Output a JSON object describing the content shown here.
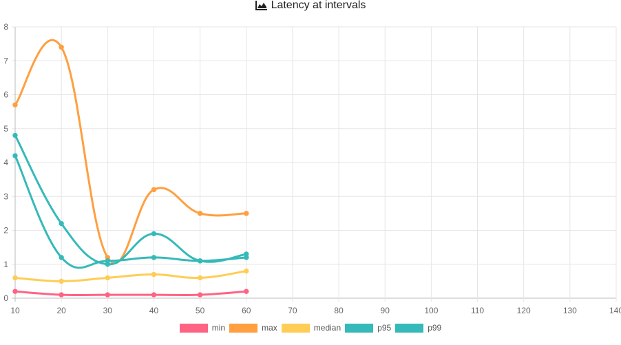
{
  "title": "Latency at intervals",
  "chart_data": {
    "type": "line",
    "title": "Latency at intervals",
    "xlabel": "",
    "ylabel": "",
    "x": [
      10,
      20,
      30,
      40,
      50,
      60
    ],
    "xlim": [
      10,
      140
    ],
    "xticks": [
      "10",
      "20",
      "30",
      "40",
      "50",
      "60",
      "70",
      "80",
      "90",
      "100",
      "110",
      "120",
      "130",
      "140"
    ],
    "ylim": [
      0,
      8
    ],
    "yticks": [
      "0",
      "1",
      "2",
      "3",
      "4",
      "5",
      "6",
      "7",
      "8"
    ],
    "grid": true,
    "legend_position": "bottom",
    "series": [
      {
        "name": "min",
        "color": "#ff6384",
        "values": [
          0.2,
          0.1,
          0.1,
          0.1,
          0.1,
          0.2
        ]
      },
      {
        "name": "max",
        "color": "#ff9f40",
        "values": [
          5.7,
          7.4,
          1.2,
          3.2,
          2.5,
          2.5
        ]
      },
      {
        "name": "median",
        "color": "#ffcd56",
        "values": [
          0.6,
          0.5,
          0.6,
          0.7,
          0.6,
          0.8
        ]
      },
      {
        "name": "p95",
        "color": "#36b9b9",
        "values": [
          4.2,
          1.2,
          1.1,
          1.2,
          1.1,
          1.2
        ]
      },
      {
        "name": "p99",
        "color": "#36b9b9",
        "values": [
          4.8,
          2.2,
          1.0,
          1.9,
          1.1,
          1.3
        ]
      }
    ]
  }
}
